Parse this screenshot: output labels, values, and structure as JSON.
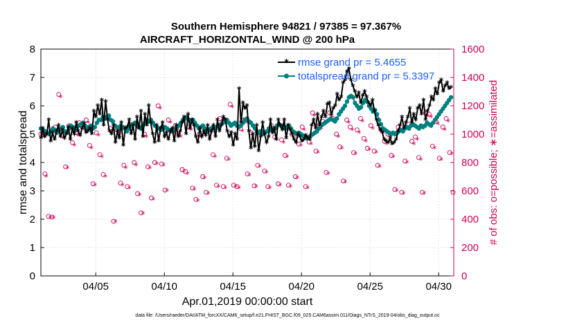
{
  "chart_data": {
    "type": "line",
    "title": "Southern Hemisphere 94821 / 97385 = 97.367%",
    "subtitle": "AIRCRAFT_HORIZONTAL_WIND @ 200 hPa",
    "xlabel": "Apr.01,2019 00:00:00 start",
    "ylabel": "rmse and totalspread",
    "y2label": "# of obs: o=possible; ∗=assimilated",
    "footer": "data file: /Users/raeder/DAI/ATM_forcXX/CAM6_setup/f.e21.FHIST_BGC.f09_025.CAM6assim.011/Diags_NTrS_2019-04/obs_diag_output.nc",
    "xlim": [
      1.0,
      31.1
    ],
    "ylim": [
      0,
      8
    ],
    "y2lim": [
      0,
      1600
    ],
    "x_ticks": [
      5,
      10,
      15,
      20,
      25,
      30
    ],
    "x_tick_labels": [
      "04/05",
      "04/10",
      "04/15",
      "04/20",
      "04/25",
      "04/30"
    ],
    "y_ticks": [
      "0",
      "1",
      "2",
      "3",
      "4",
      "5",
      "6",
      "7",
      "8"
    ],
    "y2_ticks": [
      "0",
      "200",
      "400",
      "600",
      "800",
      "1000",
      "1200",
      "1400",
      "1600"
    ],
    "grid": true,
    "legend_position": "top-right",
    "colors": {
      "rmse": "#000000",
      "totalspread": "#008080",
      "obs": "#cc0055",
      "legend_text": "#1f5fff"
    },
    "series": [
      {
        "name": "rmse grand pr = 5.4655",
        "color": "#000000",
        "axis": "left",
        "values": [
          4.85,
          5.2,
          4.9,
          5.0,
          5.5,
          4.75,
          5.05,
          4.8,
          5.1,
          5.3,
          4.9,
          5.15,
          4.85,
          5.0,
          5.25,
          4.8,
          5.2,
          5.0,
          5.4,
          5.1,
          4.95,
          5.2,
          5.35,
          5.05,
          5.1,
          5.2,
          5.0,
          5.8,
          5.6,
          6.0,
          5.7,
          6.2,
          5.3,
          6.15,
          5.5,
          5.1,
          5.0,
          5.3,
          4.7,
          5.1,
          4.85,
          5.4,
          4.6,
          5.2,
          5.25,
          5.5,
          5.0,
          5.3,
          4.8,
          5.6,
          5.2,
          5.8,
          4.9,
          5.7,
          5.3,
          6.0,
          5.4,
          5.0,
          4.7,
          5.3,
          4.75,
          5.2,
          5.4,
          4.9,
          5.05,
          4.8,
          5.1,
          5.2,
          4.75,
          5.3,
          4.9,
          5.1,
          5.4,
          5.6,
          5.0,
          5.7,
          5.2,
          5.5,
          5.3,
          4.9,
          4.7,
          5.2,
          4.9,
          5.1,
          4.95,
          5.3,
          4.8,
          5.1,
          5.3,
          4.9,
          5.5,
          5.1,
          5.3,
          5.6,
          5.5,
          5.1,
          4.9,
          5.05,
          4.6,
          5.0,
          4.8,
          6.6,
          5.4,
          6.1,
          5.9,
          6.0,
          5.1,
          4.5,
          5.0,
          4.55,
          5.3,
          4.4,
          4.9,
          5.4,
          5.0,
          4.7,
          4.9,
          5.5,
          5.05,
          5.2,
          4.8,
          5.5,
          5.3,
          5.15,
          5.5,
          4.85,
          5.3,
          5.15,
          5.0,
          4.8,
          4.7,
          5.0,
          4.9,
          4.75,
          4.8,
          4.95,
          4.85,
          4.8,
          5.3,
          5.5,
          5.2,
          5.7,
          5.3,
          5.6,
          5.8,
          5.6,
          6.05,
          6.1,
          5.7,
          5.9,
          6.0,
          6.4,
          6.2,
          6.3,
          6.8,
          6.9,
          7.2,
          7.3,
          6.9,
          6.7,
          6.5,
          6.3,
          6.45,
          6.1,
          6.35,
          6.5,
          6.3,
          6.1,
          6.0,
          6.2,
          5.8,
          5.5,
          5.3,
          5.15,
          5.05,
          4.8,
          4.75,
          4.7,
          4.85,
          4.65,
          4.7,
          4.8,
          5.1,
          5.3,
          5.6,
          5.2,
          5.4,
          5.6,
          5.9,
          5.4,
          5.7,
          5.5,
          5.9,
          6.0,
          5.7,
          6.2,
          5.5,
          5.8,
          6.0,
          6.3,
          6.2,
          6.6,
          6.4,
          6.8,
          6.9,
          6.5,
          6.7,
          6.8,
          6.6,
          6.65
        ]
      },
      {
        "name": "totalspread grand pr = 5.3397",
        "color": "#008080",
        "axis": "left",
        "values": [
          5.2,
          5.15,
          5.1,
          5.05,
          5.0,
          5.1,
          5.2,
          5.15,
          5.05,
          5.1,
          5.2,
          5.25,
          5.1,
          5.05,
          5.2,
          5.3,
          5.25,
          5.15,
          5.2,
          5.3,
          5.35,
          5.4,
          5.3,
          5.2,
          5.25,
          5.3,
          5.2,
          5.25,
          5.4,
          5.5,
          5.5,
          5.6,
          5.55,
          5.6,
          5.65,
          5.5,
          5.45,
          5.3,
          5.25,
          5.2,
          5.3,
          5.25,
          5.2,
          5.1,
          5.2,
          5.3,
          5.35,
          5.4,
          5.3,
          5.25,
          5.2,
          5.3,
          5.4,
          5.5,
          5.45,
          5.5,
          5.4,
          5.3,
          5.25,
          5.2,
          5.15,
          5.2,
          5.25,
          5.2,
          5.15,
          5.1,
          5.15,
          5.2,
          5.25,
          5.3,
          5.4,
          5.5,
          5.55,
          5.6,
          5.5,
          5.45,
          5.5,
          5.4,
          5.3,
          5.2,
          5.25,
          5.3,
          5.2,
          5.1,
          5.15,
          5.2,
          5.25,
          5.2,
          5.25,
          5.3,
          5.35,
          5.4,
          5.45,
          5.5,
          5.4,
          5.3,
          5.35,
          5.4,
          5.3,
          5.25,
          5.3,
          5.4,
          5.5,
          5.55,
          5.45,
          5.4,
          5.3,
          5.2,
          5.1,
          5.05,
          5.1,
          5.0,
          5.05,
          5.1,
          5.2,
          5.15,
          5.1,
          5.2,
          5.3,
          5.35,
          5.3,
          5.25,
          5.2,
          5.25,
          5.3,
          5.2,
          5.1,
          5.05,
          5.0,
          5.05,
          5.0,
          4.95,
          4.9,
          4.85,
          4.9,
          4.95,
          5.0,
          5.05,
          5.1,
          5.2,
          5.3,
          5.35,
          5.4,
          5.45,
          5.5,
          5.55,
          5.5,
          5.45,
          5.55,
          5.7,
          5.8,
          5.9,
          6.0,
          6.15,
          6.3,
          6.35,
          6.3,
          6.1,
          6.0,
          5.9,
          5.95,
          6.1,
          6.2,
          6.15,
          6.0,
          5.9,
          5.8,
          5.85,
          5.7,
          5.5,
          5.35,
          5.2,
          5.15,
          5.1,
          5.05,
          5.0,
          5.05,
          5.0,
          5.05,
          5.1,
          5.15,
          5.1,
          5.2,
          5.25,
          5.2,
          5.3,
          5.35,
          5.3,
          5.25,
          5.2,
          5.3,
          5.25,
          5.3,
          5.4,
          5.35,
          5.3,
          5.4,
          5.5,
          5.6,
          5.7,
          5.8,
          5.9,
          6.0,
          6.1,
          6.2,
          6.3
        ]
      }
    ],
    "obs_possible": {
      "name": "possible",
      "marker": "o",
      "color": "#cc0055",
      "axis": "right",
      "x": [
        1.0,
        1.3,
        1.55,
        1.8,
        2.05,
        2.3,
        2.55,
        2.8,
        3.05,
        3.3,
        3.55,
        3.8,
        4.05,
        4.3,
        4.55,
        4.8,
        5.05,
        5.3,
        5.55,
        5.8,
        6.05,
        6.3,
        6.55,
        6.8,
        7.05,
        7.3,
        7.55,
        7.8,
        8.05,
        8.3,
        8.55,
        8.8,
        9.05,
        9.3,
        9.55,
        9.8,
        10.05,
        10.3,
        10.55,
        10.8,
        11.05,
        11.3,
        11.55,
        11.8,
        12.05,
        12.3,
        12.55,
        12.8,
        13.05,
        13.3,
        13.55,
        13.8,
        14.05,
        14.3,
        14.55,
        14.8,
        15.05,
        15.3,
        15.55,
        15.8,
        16.05,
        16.3,
        16.55,
        16.8,
        17.05,
        17.3,
        17.55,
        17.8,
        18.05,
        18.3,
        18.55,
        18.8,
        19.05,
        19.3,
        19.55,
        19.8,
        20.05,
        20.3,
        20.55,
        20.8,
        21.05,
        21.3,
        21.55,
        21.8,
        22.05,
        22.3,
        22.55,
        22.8,
        23.05,
        23.3,
        23.55,
        23.8,
        24.05,
        24.3,
        24.55,
        24.8,
        25.05,
        25.3,
        25.55,
        25.8,
        26.05,
        26.3,
        26.55,
        26.8,
        27.05,
        27.3,
        27.55,
        27.8,
        28.05,
        28.3,
        28.55,
        28.8,
        29.05,
        29.3,
        29.55,
        29.8,
        30.05,
        30.3,
        30.55,
        30.8,
        31.05
      ],
      "y": [
        1000,
        720,
        420,
        415,
        1050,
        1280,
        990,
        770,
        1060,
        940,
        1010,
        1080,
        1050,
        1100,
        920,
        650,
        1010,
        855,
        715,
        1120,
        1040,
        385,
        1030,
        655,
        780,
        630,
        1070,
        800,
        580,
        445,
        1000,
        770,
        550,
        800,
        1200,
        790,
        605,
        1100,
        1030,
        1060,
        1000,
        750,
        735,
        1050,
        620,
        540,
        1000,
        700,
        590,
        1030,
        855,
        640,
        1110,
        630,
        830,
        1210,
        640,
        630,
        1040,
        1100,
        720,
        1010,
        635,
        780,
        1020,
        740,
        630,
        1060,
        980,
        650,
        960,
        850,
        640,
        1000,
        700,
        930,
        1050,
        630,
        945,
        1150,
        880,
        1060,
        1090,
        730,
        1150,
        1110,
        1000,
        910,
        670,
        1100,
        1050,
        870,
        1030,
        1110,
        970,
        900,
        1060,
        880,
        780,
        1030,
        950,
        1000,
        850,
        610,
        1050,
        590,
        810,
        1070,
        950,
        980,
        835,
        590,
        1150,
        1140,
        915,
        1090,
        830,
        1050,
        1110,
        870,
        590
      ]
    },
    "obs_assimilated": {
      "name": "assimilated",
      "marker": "*",
      "color": "#cc0055",
      "axis": "right",
      "x": [
        1.15,
        1.4,
        1.7,
        1.95,
        2.2,
        2.45,
        2.7,
        2.95,
        3.2,
        3.45,
        3.7,
        3.95,
        4.2,
        4.45,
        4.7,
        4.95,
        5.2,
        5.45,
        5.7,
        5.95,
        6.2,
        6.45,
        6.7,
        6.95,
        7.2,
        7.45,
        7.7,
        7.95,
        8.2,
        8.45,
        8.7,
        8.95,
        9.2,
        9.45,
        9.7,
        9.95,
        10.2,
        10.45,
        10.7,
        10.95,
        11.2,
        11.45,
        11.7,
        11.95,
        12.2,
        12.45,
        12.7,
        12.95,
        13.2,
        13.45,
        13.7,
        13.95,
        14.2,
        14.45,
        14.7,
        14.95,
        15.2,
        15.45,
        15.7,
        15.95,
        16.2,
        16.45,
        16.7,
        16.95,
        17.2,
        17.45,
        17.7,
        17.95,
        18.2,
        18.45,
        18.7,
        18.95,
        19.2,
        19.45,
        19.7,
        19.95,
        20.2,
        20.45,
        20.7,
        20.95,
        21.2,
        21.45,
        21.7,
        21.95,
        22.2,
        22.45,
        22.7,
        22.95,
        23.2,
        23.45,
        23.7,
        23.95,
        24.2,
        24.45,
        24.7,
        24.95,
        25.2,
        25.45,
        25.7,
        25.95,
        26.2,
        26.45,
        26.7,
        26.95,
        27.2,
        27.45,
        27.7,
        27.95,
        28.2,
        28.45,
        28.7,
        28.95,
        29.2,
        29.45,
        29.7,
        29.95,
        30.2,
        30.45,
        30.7,
        30.95
      ],
      "y": [
        980,
        700,
        410,
        410,
        1020,
        1260,
        980,
        760,
        1040,
        920,
        990,
        1060,
        1030,
        1080,
        900,
        640,
        990,
        840,
        700,
        1100,
        1020,
        380,
        1010,
        640,
        760,
        620,
        1050,
        780,
        570,
        440,
        980,
        760,
        540,
        790,
        1180,
        780,
        600,
        1080,
        1010,
        1040,
        980,
        740,
        720,
        1030,
        610,
        530,
        980,
        690,
        580,
        1010,
        840,
        630,
        1090,
        620,
        820,
        1190,
        630,
        620,
        1020,
        1080,
        710,
        990,
        630,
        770,
        1000,
        730,
        620,
        1040,
        960,
        640,
        940,
        840,
        630,
        980,
        690,
        920,
        1030,
        620,
        930,
        1130,
        870,
        1040,
        1070,
        720,
        1130,
        1090,
        980,
        900,
        660,
        1080,
        1030,
        860,
        1010,
        1090,
        950,
        890,
        1040,
        870,
        770,
        1010,
        930,
        980,
        840,
        600,
        1030,
        580,
        800,
        1050,
        930,
        960,
        820,
        580,
        1130,
        1120,
        900,
        1070,
        820,
        1030,
        1090,
        860
      ]
    }
  }
}
